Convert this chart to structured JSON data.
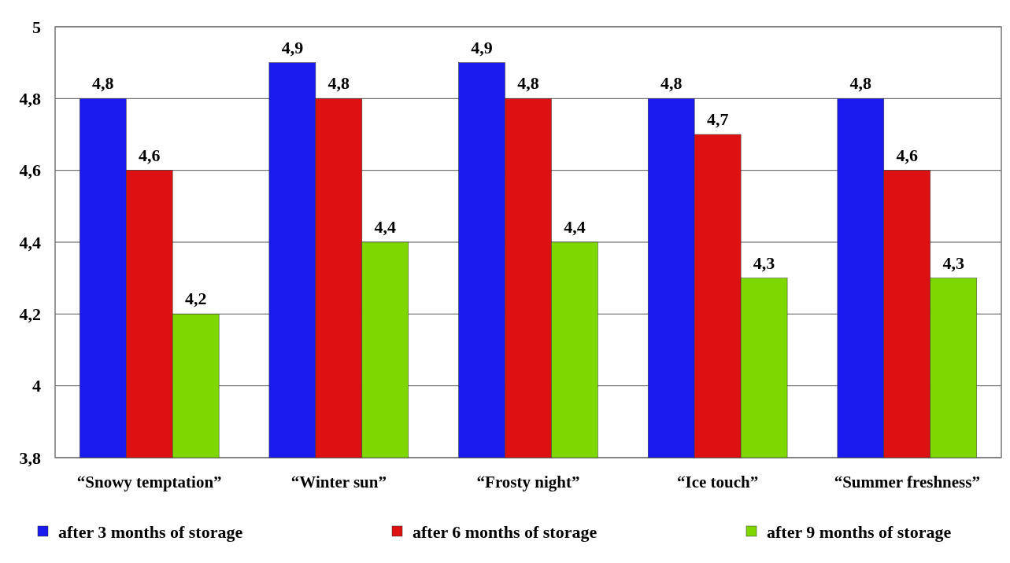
{
  "chart_data": {
    "type": "bar",
    "categories": [
      "“Snowy temptation”",
      "“Winter sun”",
      "“Frosty night”",
      "“Ice touch”",
      "“Summer freshness”"
    ],
    "series": [
      {
        "name": "after 3 months of storage",
        "color": "#1a1aee",
        "values": [
          4.8,
          4.9,
          4.9,
          4.8,
          4.8
        ],
        "value_labels": [
          "4,8",
          "4,9",
          "4,9",
          "4,8",
          "4,8"
        ]
      },
      {
        "name": "after 6 months of storage",
        "color": "#dd1111",
        "values": [
          4.6,
          4.8,
          4.8,
          4.7,
          4.6
        ],
        "value_labels": [
          "4,6",
          "4,8",
          "4,8",
          "4,7",
          "4,6"
        ]
      },
      {
        "name": "after 9 months of storage",
        "color": "#7fd700",
        "values": [
          4.2,
          4.4,
          4.4,
          4.3,
          4.3
        ],
        "value_labels": [
          "4,2",
          "4,4",
          "4,4",
          "4,3",
          "4,3"
        ]
      }
    ],
    "ylim": [
      3.8,
      5
    ],
    "yticks": [
      {
        "value": 3.8,
        "label": "3,8"
      },
      {
        "value": 4,
        "label": "4"
      },
      {
        "value": 4.2,
        "label": "4,2"
      },
      {
        "value": 4.4,
        "label": "4,4"
      },
      {
        "value": 4.6,
        "label": "4,6"
      },
      {
        "value": 4.8,
        "label": "4,8"
      },
      {
        "value": 5,
        "label": "5"
      }
    ],
    "grid": "y",
    "legend": "bottom"
  }
}
